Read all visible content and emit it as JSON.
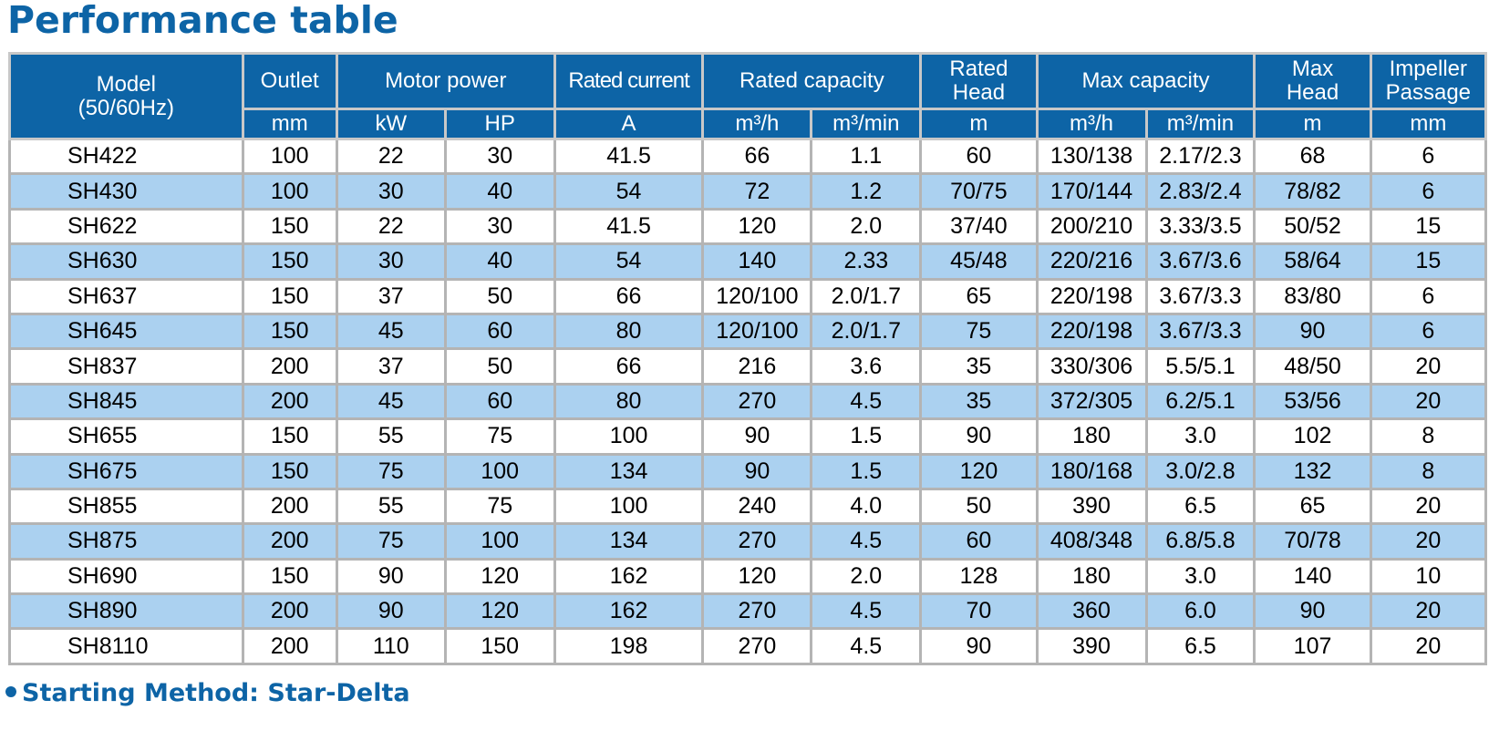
{
  "title": "Performance table",
  "colors": {
    "header_bg": "#0d64a6",
    "stripe": "#abd1f0",
    "title": "#0d64a6"
  },
  "header": {
    "model": "Model (50/60Hz)",
    "outlet": "Outlet",
    "motor_power": "Motor power",
    "rated_current": "Rated current",
    "rated_capacity": "Rated capacity",
    "rated_head": "Rated Head",
    "max_capacity": "Max capacity",
    "max_head": "Max Head",
    "impeller_passage": "Impeller Passage"
  },
  "units": [
    "mm",
    "kW",
    "HP",
    "A",
    "m³/h",
    "m³/min",
    "m",
    "m³/h",
    "m³/min",
    "m",
    "mm"
  ],
  "rows": [
    [
      "SH422",
      "100",
      "22",
      "30",
      "41.5",
      "66",
      "1.1",
      "60",
      "130/138",
      "2.17/2.3",
      "68",
      "6"
    ],
    [
      "SH430",
      "100",
      "30",
      "40",
      "54",
      "72",
      "1.2",
      "70/75",
      "170/144",
      "2.83/2.4",
      "78/82",
      "6"
    ],
    [
      "SH622",
      "150",
      "22",
      "30",
      "41.5",
      "120",
      "2.0",
      "37/40",
      "200/210",
      "3.33/3.5",
      "50/52",
      "15"
    ],
    [
      "SH630",
      "150",
      "30",
      "40",
      "54",
      "140",
      "2.33",
      "45/48",
      "220/216",
      "3.67/3.6",
      "58/64",
      "15"
    ],
    [
      "SH637",
      "150",
      "37",
      "50",
      "66",
      "120/100",
      "2.0/1.7",
      "65",
      "220/198",
      "3.67/3.3",
      "83/80",
      "6"
    ],
    [
      "SH645",
      "150",
      "45",
      "60",
      "80",
      "120/100",
      "2.0/1.7",
      "75",
      "220/198",
      "3.67/3.3",
      "90",
      "6"
    ],
    [
      "SH837",
      "200",
      "37",
      "50",
      "66",
      "216",
      "3.6",
      "35",
      "330/306",
      "5.5/5.1",
      "48/50",
      "20"
    ],
    [
      "SH845",
      "200",
      "45",
      "60",
      "80",
      "270",
      "4.5",
      "35",
      "372/305",
      "6.2/5.1",
      "53/56",
      "20"
    ],
    [
      "SH655",
      "150",
      "55",
      "75",
      "100",
      "90",
      "1.5",
      "90",
      "180",
      "3.0",
      "102",
      "8"
    ],
    [
      "SH675",
      "150",
      "75",
      "100",
      "134",
      "90",
      "1.5",
      "120",
      "180/168",
      "3.0/2.8",
      "132",
      "8"
    ],
    [
      "SH855",
      "200",
      "55",
      "75",
      "100",
      "240",
      "4.0",
      "50",
      "390",
      "6.5",
      "65",
      "20"
    ],
    [
      "SH875",
      "200",
      "75",
      "100",
      "134",
      "270",
      "4.5",
      "60",
      "408/348",
      "6.8/5.8",
      "70/78",
      "20"
    ],
    [
      "SH690",
      "150",
      "90",
      "120",
      "162",
      "120",
      "2.0",
      "128",
      "180",
      "3.0",
      "140",
      "10"
    ],
    [
      "SH890",
      "200",
      "90",
      "120",
      "162",
      "270",
      "4.5",
      "70",
      "360",
      "6.0",
      "90",
      "20"
    ],
    [
      "SH8110",
      "200",
      "110",
      "150",
      "198",
      "270",
      "4.5",
      "90",
      "390",
      "6.5",
      "107",
      "20"
    ]
  ],
  "footnote": "Starting Method: Star-Delta"
}
